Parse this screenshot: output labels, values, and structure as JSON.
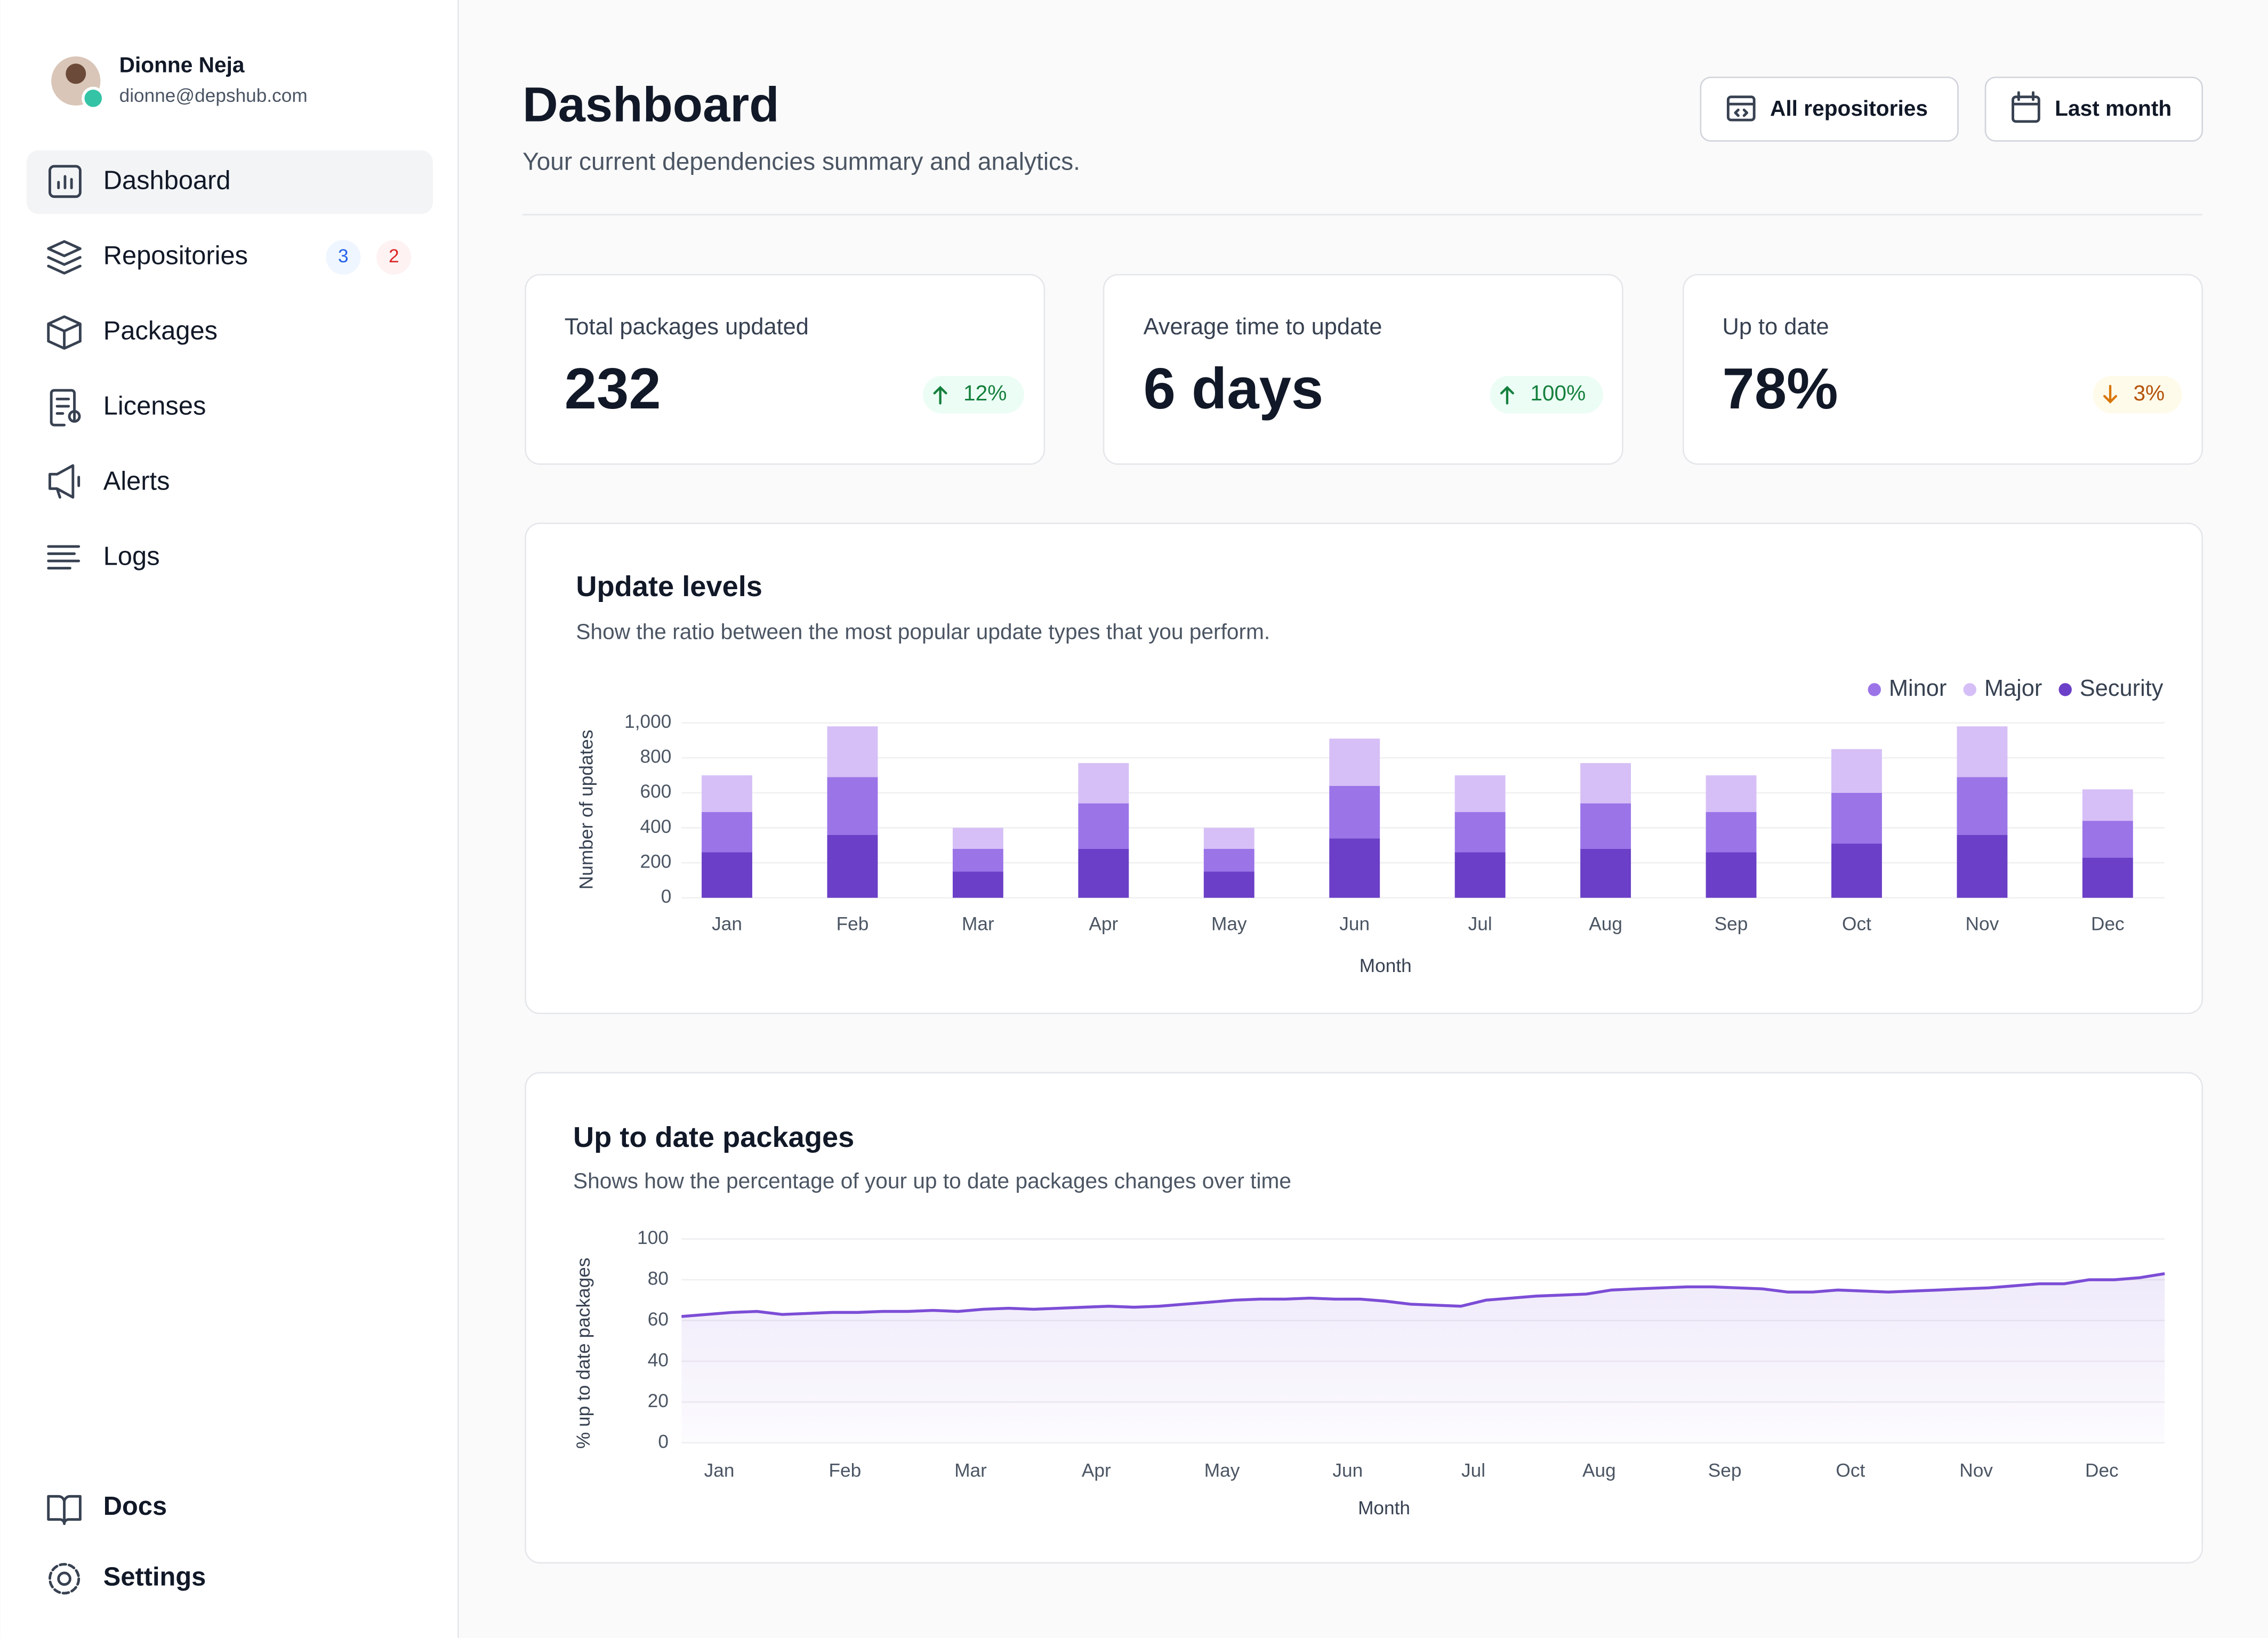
{
  "sidebar": {
    "user": {
      "name": "Dionne Neja",
      "email": "dionne@depshub.com"
    },
    "nav": [
      {
        "label": "Dashboard"
      },
      {
        "label": "Repositories",
        "badges": [
          "3",
          "2"
        ]
      },
      {
        "label": "Packages"
      },
      {
        "label": "Licenses"
      },
      {
        "label": "Alerts"
      },
      {
        "label": "Logs"
      }
    ],
    "footer": [
      {
        "label": "Docs"
      },
      {
        "label": "Settings"
      }
    ]
  },
  "header": {
    "title": "Dashboard",
    "subtitle": "Your current dependencies summary and analytics.",
    "buttons": [
      "All repositories",
      "Last month"
    ]
  },
  "stats": [
    {
      "label": "Total packages updated",
      "value": "232",
      "change": "12%",
      "direction": "up"
    },
    {
      "label": "Average time to update",
      "value": "6 days",
      "change": "100%",
      "direction": "up"
    },
    {
      "label": "Up to date",
      "value": "78%",
      "change": "3%",
      "direction": "down"
    }
  ],
  "chart_data": [
    {
      "type": "bar",
      "stacked": true,
      "title": "Update levels",
      "subtitle": "Show the ratio between the most popular update types that you perform.",
      "x_label": "Month",
      "y_label": "Number of updates",
      "categories": [
        "Jan",
        "Feb",
        "Mar",
        "Apr",
        "May",
        "Jun",
        "Jul",
        "Aug",
        "Sep",
        "Oct",
        "Nov",
        "Dec"
      ],
      "series": [
        {
          "name": "Minor",
          "color": "#9b74e8",
          "values": [
            230,
            330,
            130,
            260,
            130,
            300,
            230,
            260,
            230,
            290,
            330,
            210
          ]
        },
        {
          "name": "Major",
          "color": "#d6bff6",
          "values": [
            210,
            290,
            120,
            230,
            120,
            270,
            210,
            230,
            210,
            250,
            290,
            180
          ]
        },
        {
          "name": "Security",
          "color": "#6b3fc7",
          "values": [
            260,
            360,
            150,
            280,
            150,
            340,
            260,
            280,
            260,
            310,
            360,
            230
          ]
        }
      ],
      "stack_order": [
        "Security",
        "Minor",
        "Major"
      ],
      "ylim": [
        0,
        1000
      ],
      "yticks": [
        0,
        200,
        400,
        600,
        800,
        {
          "value": 1000,
          "label": "1,000"
        }
      ],
      "grid": true,
      "legend": "top-right"
    },
    {
      "type": "area",
      "title": "Up to date packages",
      "subtitle": "Shows how the percentage of your up to date packages changes over time",
      "x_label": "Month",
      "y_label": "% up to date packages",
      "x": [
        0,
        1,
        2,
        3,
        4,
        5,
        6,
        7,
        8,
        9,
        10,
        11,
        12,
        13,
        14,
        15,
        16,
        17,
        18,
        19,
        20,
        21,
        22,
        23,
        24,
        25,
        26,
        27,
        28,
        29,
        30,
        31,
        32,
        33,
        34,
        35,
        36,
        37,
        38,
        39,
        40,
        41,
        42,
        43,
        44,
        45,
        46,
        47,
        48,
        49,
        50,
        51,
        52,
        53,
        54,
        55,
        56,
        57,
        58,
        59
      ],
      "series": [
        {
          "name": "Up to date",
          "color": "#7c4dd6",
          "values": [
            62,
            63,
            64,
            64.5,
            63,
            63.5,
            64,
            64,
            64.5,
            64.5,
            65,
            64.5,
            65.5,
            66,
            65.5,
            66,
            66.5,
            67,
            66.5,
            67,
            68,
            69,
            70,
            70.5,
            70.5,
            71,
            70.5,
            70.5,
            69.5,
            68,
            67.5,
            67,
            70,
            71,
            72,
            72.5,
            73,
            75,
            75.5,
            76,
            76.5,
            76.5,
            76,
            75.5,
            74,
            74,
            75,
            74.5,
            74,
            74.5,
            75,
            75.5,
            76,
            77,
            78,
            78,
            80,
            80,
            81,
            83
          ]
        }
      ],
      "xlim": [
        0,
        59
      ],
      "xticks": [
        {
          "value": 1.5,
          "label": "Jan"
        },
        {
          "value": 6.5,
          "label": "Feb"
        },
        {
          "value": 11.5,
          "label": "Mar"
        },
        {
          "value": 16.5,
          "label": "Apr"
        },
        {
          "value": 21.5,
          "label": "May"
        },
        {
          "value": 26.5,
          "label": "Jun"
        },
        {
          "value": 31.5,
          "label": "Jul"
        },
        {
          "value": 36.5,
          "label": "Aug"
        },
        {
          "value": 41.5,
          "label": "Sep"
        },
        {
          "value": 46.5,
          "label": "Oct"
        },
        {
          "value": 51.5,
          "label": "Nov"
        },
        {
          "value": 56.5,
          "label": "Dec"
        }
      ],
      "ylim": [
        0,
        100
      ],
      "yticks": [
        0,
        20,
        40,
        60,
        80,
        100
      ],
      "grid": true
    }
  ]
}
